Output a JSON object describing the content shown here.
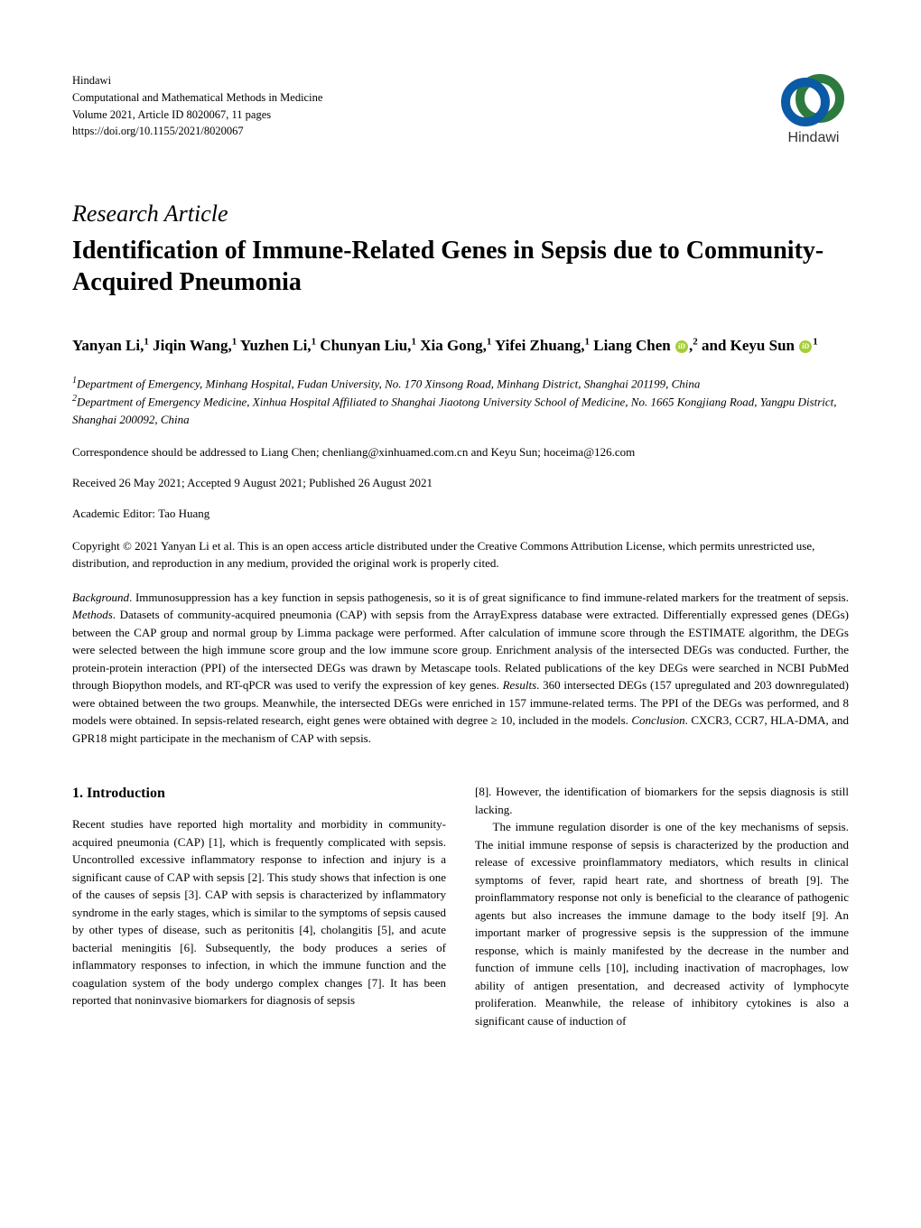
{
  "publisher": {
    "name": "Hindawi",
    "journal": "Computational and Mathematical Methods in Medicine",
    "volume_line": "Volume 2021, Article ID 8020067, 11 pages",
    "doi_line": "https://doi.org/10.1155/2021/8020067",
    "logo_text": "Hindawi",
    "logo_colors": {
      "back_ring": "#2d7a3f",
      "front_ring": "#0b5aa6"
    }
  },
  "article_type": "Research Article",
  "title": "Identification of Immune-Related Genes in Sepsis due to Community-Acquired Pneumonia",
  "authors_html": "Yanyan Li,<sup>1</sup> Jiqin Wang,<sup>1</sup> Yuzhen Li,<sup>1</sup> Chunyan Liu,<sup>1</sup> Xia Gong,<sup>1</sup> Yifei Zhuang,<sup>1</sup> Liang Chen <span class='orcid' data-name='orcid-icon' data-interactable='false'></span>,<sup>2</sup> and Keyu Sun <span class='orcid' data-name='orcid-icon' data-interactable='false'></span><sup>1</sup>",
  "affiliations": {
    "a1": "Department of Emergency, Minhang Hospital, Fudan University, No. 170 Xinsong Road, Minhang District, Shanghai 201199, China",
    "a2": "Department of Emergency Medicine, Xinhua Hospital Affiliated to Shanghai Jiaotong University School of Medicine, No. 1665 Kongjiang Road, Yangpu District, Shanghai 200092, China"
  },
  "correspondence": "Correspondence should be addressed to Liang Chen; chenliang@xinhuamed.com.cn and Keyu Sun; hoceima@126.com",
  "dates": "Received 26 May 2021; Accepted 9 August 2021; Published 26 August 2021",
  "editor": "Academic Editor: Tao Huang",
  "copyright": "Copyright © 2021 Yanyan Li et al. This is an open access article distributed under the Creative Commons Attribution License, which permits unrestricted use, distribution, and reproduction in any medium, provided the original work is properly cited.",
  "abstract": {
    "background_label": "Background",
    "background": ". Immunosuppression has a key function in sepsis pathogenesis, so it is of great significance to find immune-related markers for the treatment of sepsis. ",
    "methods_label": "Methods",
    "methods": ". Datasets of community-acquired pneumonia (CAP) with sepsis from the ArrayExpress database were extracted. Differentially expressed genes (DEGs) between the CAP group and normal group by Limma package were performed. After calculation of immune score through the ESTIMATE algorithm, the DEGs were selected between the high immune score group and the low immune score group. Enrichment analysis of the intersected DEGs was conducted. Further, the protein-protein interaction (PPI) of the intersected DEGs was drawn by Metascape tools. Related publications of the key DEGs were searched in NCBI PubMed through Biopython models, and RT-qPCR was used to verify the expression of key genes. ",
    "results_label": "Results",
    "results": ". 360 intersected DEGs (157 upregulated and 203 downregulated) were obtained between the two groups. Meanwhile, the intersected DEGs were enriched in 157 immune-related terms. The PPI of the DEGs was performed, and 8 models were obtained. In sepsis-related research, eight genes were obtained with degree ≥ 10, included in the models. ",
    "conclusion_label": "Conclusion",
    "conclusion": ". CXCR3, CCR7, HLA-DMA, and GPR18 might participate in the mechanism of CAP with sepsis."
  },
  "sections": {
    "intro_heading": "1. Introduction",
    "intro_col1": "Recent studies have reported high mortality and morbidity in community-acquired pneumonia (CAP) [1], which is frequently complicated with sepsis. Uncontrolled excessive inflammatory response to infection and injury is a significant cause of CAP with sepsis [2]. This study shows that infection is one of the causes of sepsis [3]. CAP with sepsis is characterized by inflammatory syndrome in the early stages, which is similar to the symptoms of sepsis caused by other types of disease, such as peritonitis [4], cholangitis [5], and acute bacterial meningitis [6]. Subsequently, the body produces a series of inflammatory responses to infection, in which the immune function and the coagulation system of the body undergo complex changes [7]. It has been reported that noninvasive biomarkers for diagnosis of sepsis",
    "intro_col2_p1": "[8]. However, the identification of biomarkers for the sepsis diagnosis is still lacking.",
    "intro_col2_p2": "The immune regulation disorder is one of the key mechanisms of sepsis. The initial immune response of sepsis is characterized by the production and release of excessive proinflammatory mediators, which results in clinical symptoms of fever, rapid heart rate, and shortness of breath [9]. The proinflammatory response not only is beneficial to the clearance of pathogenic agents but also increases the immune damage to the body itself [9]. An important marker of progressive sepsis is the suppression of the immune response, which is mainly manifested by the decrease in the number and function of immune cells [10], including inactivation of macrophages, low ability of antigen presentation, and decreased activity of lymphocyte proliferation. Meanwhile, the release of inhibitory cytokines is also a significant cause of induction of"
  },
  "colors": {
    "text": "#000000",
    "background": "#ffffff",
    "orcid": "#a6ce39"
  },
  "typography": {
    "body_font": "Times New Roman",
    "article_type_fontsize": 26,
    "title_fontsize": 28,
    "authors_fontsize": 17,
    "body_fontsize": 13,
    "section_heading_fontsize": 16
  }
}
